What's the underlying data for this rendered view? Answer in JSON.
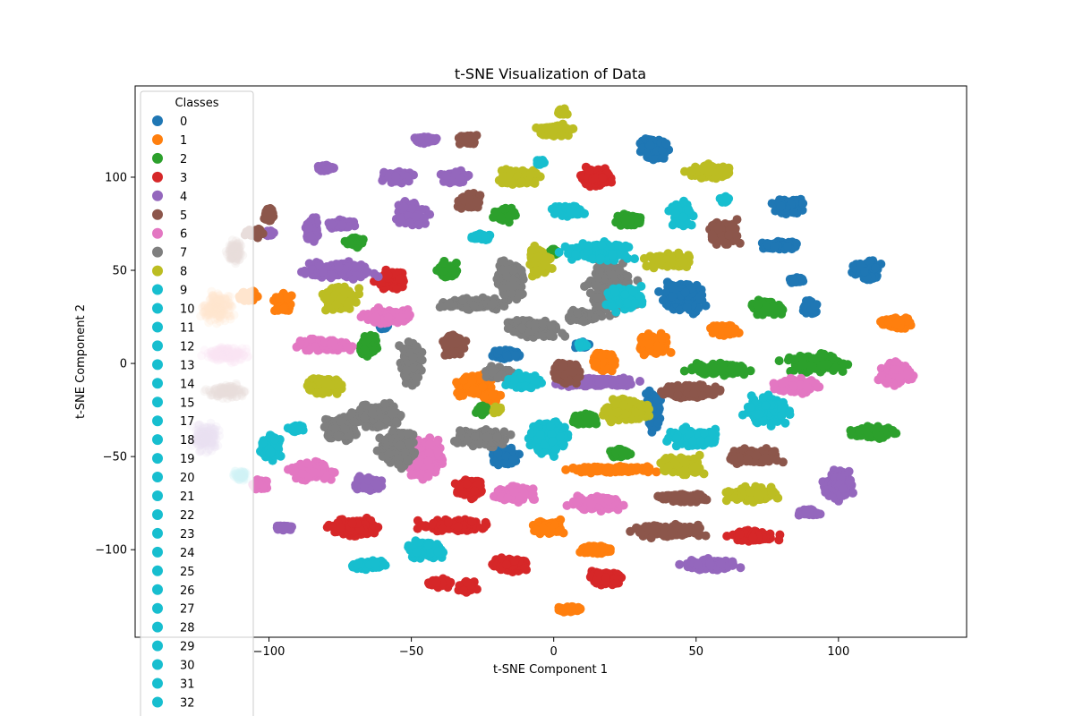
{
  "chart_data": {
    "type": "scatter",
    "title": "t-SNE Visualization of Data",
    "xlabel": "t-SNE Component 1",
    "ylabel": "t-SNE Component 2",
    "xlim": [
      -147,
      145
    ],
    "ylim": [
      -147,
      149
    ],
    "xticks": [
      -100,
      -50,
      0,
      50,
      100
    ],
    "xtick_labels": [
      "−100",
      "−50",
      "0",
      "50",
      "100"
    ],
    "yticks": [
      -100,
      -50,
      0,
      50,
      100
    ],
    "ytick_labels": [
      "−100",
      "−50",
      "0",
      "50",
      "100"
    ],
    "grid": false,
    "legend": {
      "title": "Classes",
      "placement": "upper-left",
      "entries": [
        {
          "label": "0",
          "color": "#1f77b4"
        },
        {
          "label": "1",
          "color": "#ff7f0e"
        },
        {
          "label": "2",
          "color": "#2ca02c"
        },
        {
          "label": "3",
          "color": "#d62728"
        },
        {
          "label": "4",
          "color": "#9467bd"
        },
        {
          "label": "5",
          "color": "#8c564b"
        },
        {
          "label": "6",
          "color": "#e377c2"
        },
        {
          "label": "7",
          "color": "#7f7f7f"
        },
        {
          "label": "8",
          "color": "#bcbd22"
        },
        {
          "label": "9",
          "color": "#17becf"
        },
        {
          "label": "10",
          "color": "#17becf"
        },
        {
          "label": "11",
          "color": "#17becf"
        },
        {
          "label": "12",
          "color": "#17becf"
        },
        {
          "label": "13",
          "color": "#17becf"
        },
        {
          "label": "14",
          "color": "#17becf"
        },
        {
          "label": "15",
          "color": "#17becf"
        },
        {
          "label": "17",
          "color": "#17becf"
        },
        {
          "label": "18",
          "color": "#17becf"
        },
        {
          "label": "19",
          "color": "#17becf"
        },
        {
          "label": "20",
          "color": "#17becf"
        },
        {
          "label": "21",
          "color": "#17becf"
        },
        {
          "label": "22",
          "color": "#17becf"
        },
        {
          "label": "23",
          "color": "#17becf"
        },
        {
          "label": "24",
          "color": "#17becf"
        },
        {
          "label": "25",
          "color": "#17becf"
        },
        {
          "label": "26",
          "color": "#17becf"
        },
        {
          "label": "27",
          "color": "#17becf"
        },
        {
          "label": "28",
          "color": "#17becf"
        },
        {
          "label": "29",
          "color": "#17becf"
        },
        {
          "label": "30",
          "color": "#17becf"
        },
        {
          "label": "31",
          "color": "#17becf"
        },
        {
          "label": "32",
          "color": "#17becf"
        }
      ]
    },
    "series": [
      {
        "name": "0",
        "color": "#1f77b4",
        "clusters": [
          [
            35,
            115,
            6,
            7
          ],
          [
            82,
            85,
            7,
            5
          ],
          [
            110,
            50,
            6,
            7
          ],
          [
            45,
            35,
            10,
            10
          ],
          [
            80,
            63,
            8,
            3
          ],
          [
            -17,
            5,
            6,
            3
          ],
          [
            35,
            -25,
            3,
            14
          ],
          [
            -17,
            -50,
            6,
            6
          ],
          [
            10,
            10,
            3,
            2
          ],
          [
            90,
            30,
            3,
            5
          ],
          [
            85,
            45,
            3,
            2
          ],
          [
            -60,
            20,
            2,
            2
          ]
        ]
      },
      {
        "name": "1",
        "color": "#ff7f0e",
        "clusters": [
          [
            -95,
            32,
            4,
            7
          ],
          [
            -28,
            -12,
            8,
            7
          ],
          [
            -22,
            -18,
            4,
            3
          ],
          [
            18,
            1,
            5,
            7
          ],
          [
            -2,
            -88,
            7,
            5
          ],
          [
            35,
            10,
            7,
            7
          ],
          [
            60,
            18,
            7,
            4
          ],
          [
            120,
            22,
            8,
            4
          ],
          [
            20,
            -57,
            18,
            2
          ],
          [
            15,
            -100,
            7,
            3
          ],
          [
            5,
            -132,
            5,
            2
          ],
          [
            -107,
            36,
            4,
            4
          ]
        ]
      },
      {
        "name": "2",
        "color": "#2ca02c",
        "clusters": [
          [
            -17,
            80,
            5,
            5
          ],
          [
            -37,
            50,
            5,
            5
          ],
          [
            27,
            77,
            6,
            4
          ],
          [
            75,
            30,
            7,
            5
          ],
          [
            -65,
            10,
            4,
            7
          ],
          [
            92,
            0,
            14,
            6
          ],
          [
            -70,
            65,
            4,
            3
          ],
          [
            10,
            -30,
            6,
            4
          ],
          [
            58,
            -3,
            14,
            4
          ],
          [
            112,
            -37,
            10,
            4
          ],
          [
            23,
            -48,
            5,
            3
          ],
          [
            -25,
            -25,
            3,
            3
          ],
          [
            0,
            60,
            2,
            2
          ]
        ]
      },
      {
        "name": "3",
        "color": "#d62728",
        "clusters": [
          [
            -57,
            45,
            7,
            6
          ],
          [
            -30,
            -67,
            6,
            6
          ],
          [
            -70,
            -88,
            10,
            6
          ],
          [
            -35,
            -87,
            15,
            4
          ],
          [
            -15,
            -108,
            8,
            5
          ],
          [
            18,
            -115,
            8,
            5
          ],
          [
            -40,
            -118,
            5,
            3
          ],
          [
            -30,
            -120,
            4,
            4
          ],
          [
            15,
            100,
            7,
            6
          ],
          [
            70,
            -93,
            10,
            4
          ]
        ]
      },
      {
        "name": "4",
        "color": "#9467bd",
        "clusters": [
          [
            -75,
            50,
            15,
            6
          ],
          [
            -55,
            100,
            7,
            4
          ],
          [
            -80,
            105,
            5,
            2
          ],
          [
            -45,
            120,
            5,
            2
          ],
          [
            -50,
            80,
            7,
            8
          ],
          [
            -85,
            72,
            3,
            8
          ],
          [
            -65,
            -65,
            6,
            5
          ],
          [
            -95,
            -88,
            4,
            2
          ],
          [
            -35,
            100,
            6,
            4
          ],
          [
            15,
            -10,
            20,
            3
          ],
          [
            55,
            -108,
            12,
            4
          ],
          [
            100,
            -65,
            7,
            10
          ],
          [
            90,
            -80,
            5,
            2
          ],
          [
            -75,
            75,
            6,
            3
          ],
          [
            -100,
            70,
            2,
            2
          ]
        ]
      },
      {
        "name": "5",
        "color": "#8c564b",
        "clusters": [
          [
            -30,
            120,
            4,
            4
          ],
          [
            -30,
            87,
            5,
            5
          ],
          [
            -35,
            10,
            5,
            7
          ],
          [
            5,
            -5,
            6,
            8
          ],
          [
            60,
            70,
            7,
            9
          ],
          [
            70,
            -50,
            12,
            5
          ],
          [
            45,
            -72,
            12,
            3
          ],
          [
            40,
            -90,
            15,
            4
          ],
          [
            -100,
            80,
            2,
            5
          ],
          [
            48,
            -15,
            12,
            5
          ],
          [
            -105,
            70,
            4,
            3
          ]
        ]
      },
      {
        "name": "6",
        "color": "#e377c2",
        "clusters": [
          [
            -58,
            25,
            12,
            5
          ],
          [
            -80,
            10,
            12,
            4
          ],
          [
            -45,
            -50,
            8,
            14
          ],
          [
            -85,
            -58,
            10,
            6
          ],
          [
            -15,
            -70,
            10,
            5
          ],
          [
            15,
            -75,
            12,
            5
          ],
          [
            85,
            -12,
            10,
            5
          ],
          [
            120,
            -5,
            8,
            8
          ],
          [
            -103,
            -65,
            4,
            3
          ]
        ]
      },
      {
        "name": "7",
        "color": "#7f7f7f",
        "clusters": [
          [
            -55,
            -45,
            8,
            12
          ],
          [
            -62,
            -28,
            10,
            8
          ],
          [
            -50,
            0,
            5,
            15
          ],
          [
            -15,
            45,
            6,
            14
          ],
          [
            -28,
            32,
            14,
            4
          ],
          [
            20,
            40,
            10,
            18
          ],
          [
            -5,
            18,
            10,
            6
          ],
          [
            -25,
            -40,
            12,
            6
          ],
          [
            -10,
            20,
            8,
            4
          ],
          [
            -20,
            -5,
            6,
            4
          ],
          [
            -75,
            -35,
            8,
            8
          ],
          [
            10,
            25,
            6,
            4
          ]
        ]
      },
      {
        "name": "8",
        "color": "#bcbd22",
        "clusters": [
          [
            0,
            125,
            8,
            4
          ],
          [
            -12,
            100,
            10,
            5
          ],
          [
            -5,
            55,
            5,
            10
          ],
          [
            55,
            103,
            10,
            5
          ],
          [
            70,
            -70,
            12,
            5
          ],
          [
            25,
            -25,
            10,
            8
          ],
          [
            40,
            55,
            10,
            5
          ],
          [
            -75,
            35,
            8,
            8
          ],
          [
            -80,
            -12,
            8,
            6
          ],
          [
            45,
            -55,
            10,
            7
          ],
          [
            -20,
            -25,
            2,
            2
          ],
          [
            3,
            135,
            2,
            2
          ]
        ]
      },
      {
        "name": "9",
        "color": "#17becf",
        "clusters": [
          [
            5,
            82,
            8,
            4
          ],
          [
            15,
            60,
            15,
            6
          ],
          [
            25,
            35,
            8,
            8
          ],
          [
            -2,
            -40,
            8,
            12
          ],
          [
            -10,
            -10,
            8,
            5
          ],
          [
            50,
            -40,
            12,
            6
          ],
          [
            -45,
            -100,
            8,
            6
          ],
          [
            -65,
            -108,
            8,
            3
          ],
          [
            45,
            80,
            5,
            8
          ],
          [
            -90,
            -35,
            4,
            2
          ],
          [
            -100,
            -45,
            5,
            8
          ],
          [
            75,
            -25,
            10,
            10
          ],
          [
            -25,
            68,
            5,
            2
          ],
          [
            -5,
            108,
            2,
            2
          ],
          [
            60,
            88,
            2,
            2
          ],
          [
            10,
            10,
            2,
            2
          ]
        ]
      }
    ],
    "faded_clusters": [
      [
        -118,
        30,
        8,
        10,
        "#ff7f0e"
      ],
      [
        -115,
        5,
        10,
        5,
        "#e377c2"
      ],
      [
        -115,
        -15,
        8,
        5,
        "#8c564b"
      ],
      [
        -122,
        -40,
        6,
        10,
        "#9467bd"
      ],
      [
        -112,
        60,
        4,
        8,
        "#8c564b"
      ],
      [
        -110,
        -60,
        3,
        4,
        "#17becf"
      ]
    ]
  }
}
